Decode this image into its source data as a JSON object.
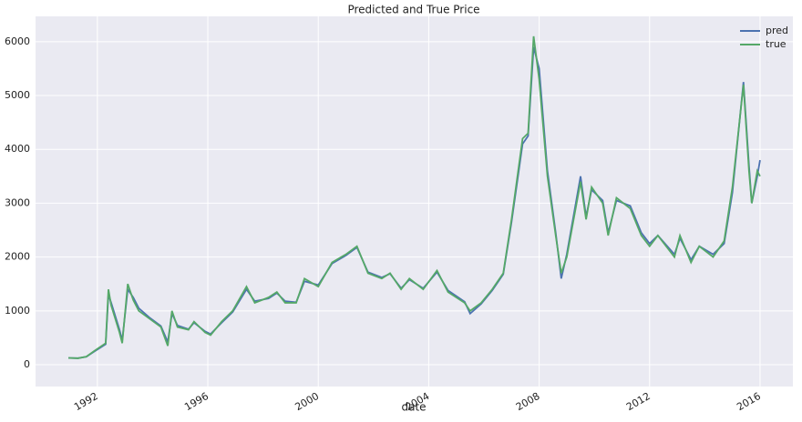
{
  "chart_data": {
    "type": "line",
    "title": "Predicted and True Price",
    "x_label": "date",
    "x": [
      1990.95,
      1991.3,
      1991.6,
      1991.9,
      1992.3,
      1992.4,
      1992.5,
      1992.8,
      1992.9,
      1993.1,
      1993.3,
      1993.5,
      1993.9,
      1994.3,
      1994.55,
      1994.7,
      1994.9,
      1995.3,
      1995.5,
      1995.9,
      1996.1,
      1996.5,
      1996.9,
      1997.4,
      1997.7,
      1998.2,
      1998.5,
      1998.8,
      1999.2,
      1999.5,
      2000.0,
      2000.5,
      2001.0,
      2001.4,
      2001.8,
      2002.3,
      2002.6,
      2003.0,
      2003.3,
      2003.8,
      2004.3,
      2004.7,
      2005.3,
      2005.5,
      2005.9,
      2006.3,
      2006.7,
      2007.0,
      2007.4,
      2007.6,
      2007.8,
      2008.0,
      2008.3,
      2008.6,
      2008.8,
      2009.0,
      2009.5,
      2009.7,
      2009.9,
      2010.3,
      2010.5,
      2010.8,
      2011.3,
      2011.7,
      2012.0,
      2012.3,
      2012.9,
      2013.1,
      2013.5,
      2013.8,
      2014.3,
      2014.7,
      2015.0,
      2015.4,
      2015.6,
      2015.7,
      2015.9,
      2016.0
    ],
    "series": [
      {
        "name": "pred",
        "color": "#4c72b0",
        "values": [
          125,
          122,
          148,
          250,
          380,
          1300,
          1150,
          650,
          450,
          1400,
          1250,
          1050,
          870,
          720,
          420,
          950,
          730,
          660,
          780,
          620,
          570,
          780,
          980,
          1400,
          1180,
          1230,
          1330,
          1180,
          1160,
          1550,
          1480,
          1880,
          2030,
          2180,
          1720,
          1620,
          1690,
          1420,
          1580,
          1420,
          1720,
          1380,
          1170,
          950,
          1130,
          1380,
          1680,
          2650,
          4100,
          4250,
          5900,
          5500,
          3600,
          2450,
          1600,
          2050,
          3500,
          2750,
          3250,
          3050,
          2450,
          3050,
          2950,
          2450,
          2250,
          2400,
          2050,
          2350,
          1950,
          2200,
          2050,
          2250,
          3200,
          5250,
          3700,
          3000,
          3500,
          3800
        ]
      },
      {
        "name": "true",
        "color": "#55a868",
        "values": [
          127,
          120,
          150,
          260,
          400,
          1400,
          1100,
          600,
          400,
          1500,
          1200,
          1000,
          850,
          700,
          350,
          1000,
          700,
          650,
          800,
          600,
          550,
          800,
          1000,
          1450,
          1150,
          1250,
          1350,
          1150,
          1150,
          1600,
          1450,
          1900,
          2050,
          2200,
          1700,
          1600,
          1700,
          1400,
          1600,
          1400,
          1750,
          1350,
          1150,
          1000,
          1150,
          1400,
          1700,
          2700,
          4200,
          4300,
          6100,
          5300,
          3500,
          2400,
          1700,
          2000,
          3400,
          2700,
          3300,
          3000,
          2400,
          3100,
          2900,
          2400,
          2200,
          2400,
          2000,
          2400,
          1900,
          2200,
          2000,
          2300,
          3300,
          5200,
          3600,
          3000,
          3600,
          3500
        ]
      }
    ],
    "xlim": [
      1989.76,
      2017.19
    ],
    "xticks": [
      1992,
      1996,
      2000,
      2004,
      2008,
      2012,
      2016
    ],
    "ylim": [
      -405,
      6470
    ],
    "yticks": [
      0,
      1000,
      2000,
      3000,
      4000,
      5000,
      6000
    ],
    "grid": true,
    "legend": "upper right"
  }
}
